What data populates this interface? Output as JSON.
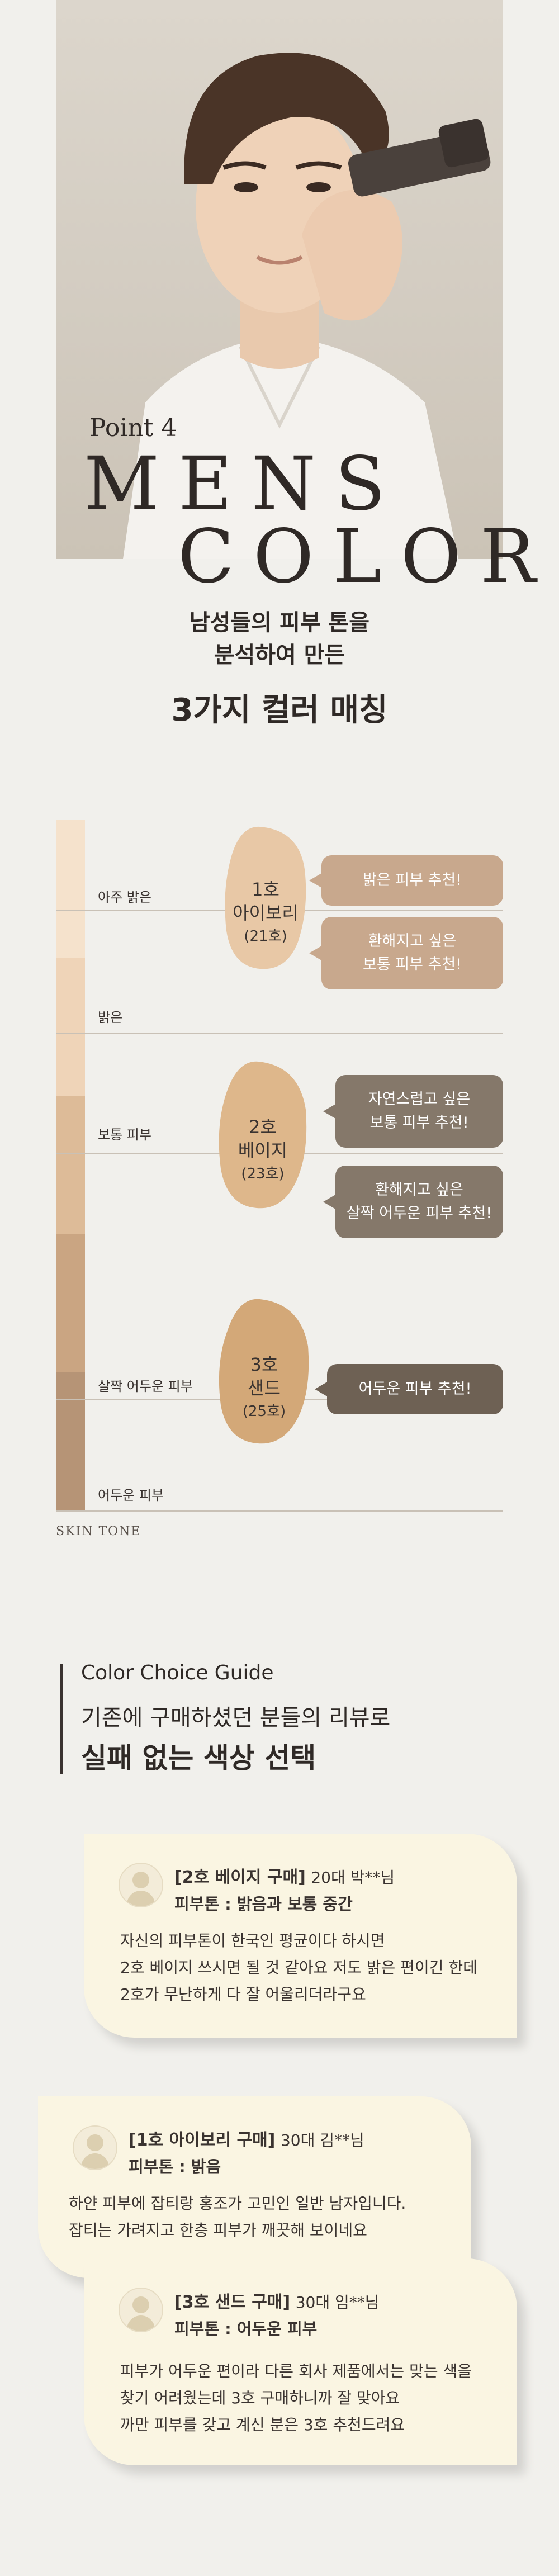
{
  "hero": {
    "point": "Point 4",
    "title_line1": "MENS",
    "title_line2": "COLOR",
    "subtitle_lines": [
      "남성들의 피부 톤을",
      "분석하여 만든"
    ],
    "headline": "3가지 컬러 매칭"
  },
  "skin_tone": {
    "levels": [
      "아주 밝은",
      "밝은",
      "보통 피부",
      "살짝 어두운 피부",
      "어두운 피부"
    ],
    "caption": "SKIN TONE",
    "colors": [
      "#f5e2cc",
      "#efd4b8",
      "#ddbb98",
      "#caa582",
      "#b69476"
    ],
    "shades": [
      {
        "num": "1호",
        "name": "아이보리",
        "code": "(21호)",
        "color": "#e8c8a6",
        "recommendations": [
          "밝은 피부 추천!",
          "환해지고 싶은\n보통 피부 추천!"
        ]
      },
      {
        "num": "2호",
        "name": "베이지",
        "code": "(23호)",
        "color": "#deb78b",
        "recommendations": [
          "자연스럽고 싶은\n보통 피부 추천!",
          "환해지고 싶은\n살짝 어두운 피부 추천!"
        ]
      },
      {
        "num": "3호",
        "name": "샌드",
        "code": "(25호)",
        "color": "#d3a878",
        "recommendations": [
          "어두운 피부 추천!"
        ]
      }
    ],
    "bubble_colors": [
      "#c8a88d",
      "#85786a",
      "#6e6154"
    ]
  },
  "guide": {
    "title": "Color Choice Guide",
    "line1": "기존에 구매하셨던 분들의 리뷰로",
    "line2": "실패 없는 색상 선택"
  },
  "reviews": [
    {
      "product": "[2호 베이지 구매]",
      "author": "20대 박**님",
      "tone": "피부톤 : 밝음과 보통 중간",
      "lines": [
        "자신의 피부톤이 한국인 평균이다 하시면",
        "2호 베이지 쓰시면 될 것 같아요 저도 밝은 편이긴 한데",
        "2호가 무난하게 다 잘 어울리더라구요"
      ]
    },
    {
      "product": "[1호 아이보리 구매]",
      "author": "30대 김**님",
      "tone": "피부톤 : 밝음",
      "lines": [
        "하얀 피부에 잡티랑 홍조가 고민인 일반 남자입니다.",
        "잡티는 가려지고 한층 피부가 깨끗해 보이네요"
      ]
    },
    {
      "product": "[3호 샌드 구매]",
      "author": "30대 임**님",
      "tone": "피부톤 : 어두운 피부",
      "lines": [
        "피부가 어두운 편이라 다른 회사 제품에서는 맞는 색을",
        "찾기 어려웠는데 3호 구매하니까 잘 맞아요",
        "까만 피부를 갖고 계신 분은 3호 추천드려요"
      ]
    }
  ]
}
